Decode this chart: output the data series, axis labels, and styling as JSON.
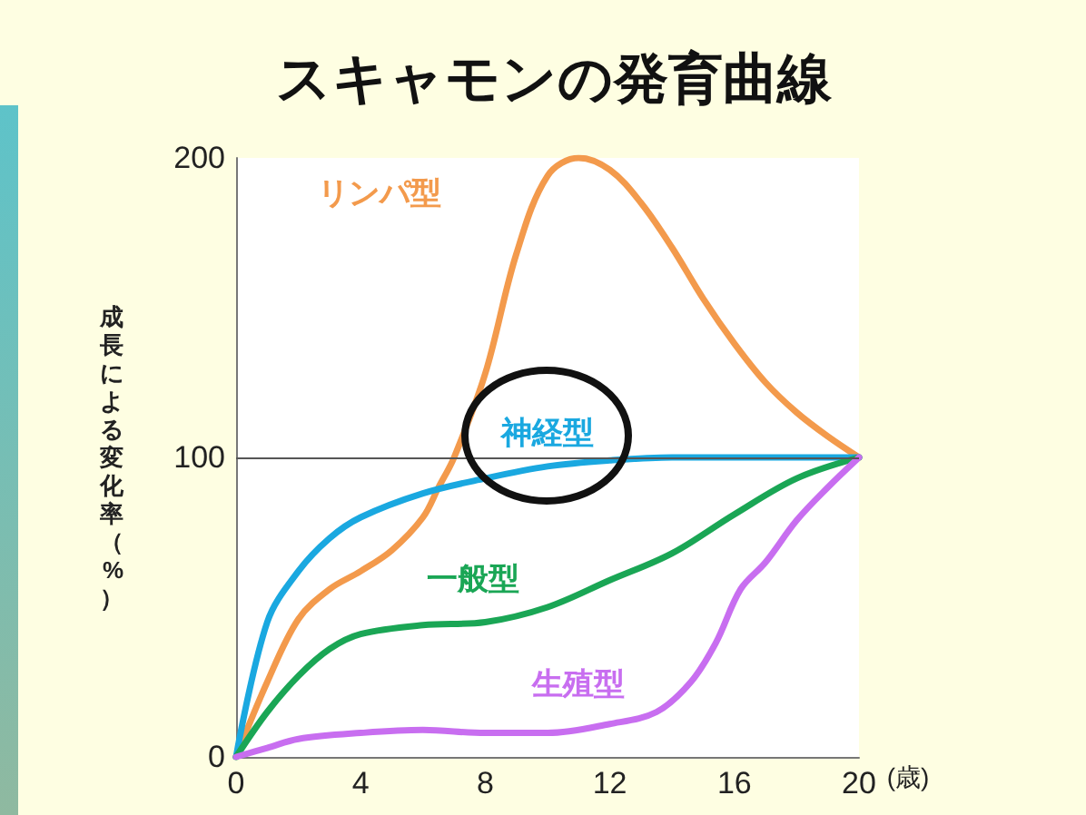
{
  "chart_data": {
    "type": "line",
    "title": "スキャモンの発育曲線",
    "xlabel": "(歳)",
    "ylabel": "成長による変化率（%）",
    "xlim": [
      0,
      20
    ],
    "xticks": [
      0,
      4,
      8,
      12,
      16,
      20
    ],
    "ylim": [
      0,
      200
    ],
    "yticks": [
      0,
      100,
      200
    ],
    "grid": false,
    "legend": false,
    "marker": "none",
    "line_style": "solid",
    "ref_lines": [
      {
        "axis": "y",
        "value": 100,
        "color": "#555555"
      }
    ],
    "series": [
      {
        "name": "リンパ型",
        "color": "#f39a4c",
        "x": [
          0,
          1,
          2,
          3,
          4,
          5,
          6,
          6.5,
          7,
          8,
          9,
          10,
          11,
          12,
          13,
          14,
          15,
          16,
          17,
          18,
          19,
          20
        ],
        "values": [
          0,
          25,
          46,
          56,
          62,
          69,
          80,
          90,
          100,
          128,
          168,
          194,
          200,
          196,
          185,
          170,
          153,
          138,
          125,
          115,
          107,
          100
        ]
      },
      {
        "name": "神経型",
        "color": "#1aa8e0",
        "x": [
          0,
          1,
          2,
          3,
          4,
          6,
          8,
          10,
          12,
          14,
          20
        ],
        "values": [
          0,
          45,
          62,
          73,
          80,
          88,
          93,
          97,
          99,
          100,
          100
        ]
      },
      {
        "name": "一般型",
        "color": "#1aa655",
        "x": [
          0,
          1,
          2,
          3,
          4,
          6,
          8,
          10,
          12,
          14,
          16,
          18,
          20
        ],
        "values": [
          0,
          15,
          27,
          36,
          41,
          44,
          45,
          50,
          59,
          68,
          81,
          93,
          100
        ]
      },
      {
        "name": "生殖型",
        "color": "#c86ef0",
        "x": [
          0,
          1,
          2,
          4,
          6,
          8,
          10,
          12,
          13.5,
          14.6,
          15.4,
          16.2,
          17,
          18,
          19,
          20
        ],
        "values": [
          0,
          3,
          6,
          8,
          9,
          8,
          8,
          11,
          15,
          25,
          38,
          56,
          65,
          79,
          90,
          100
        ]
      }
    ]
  }
}
